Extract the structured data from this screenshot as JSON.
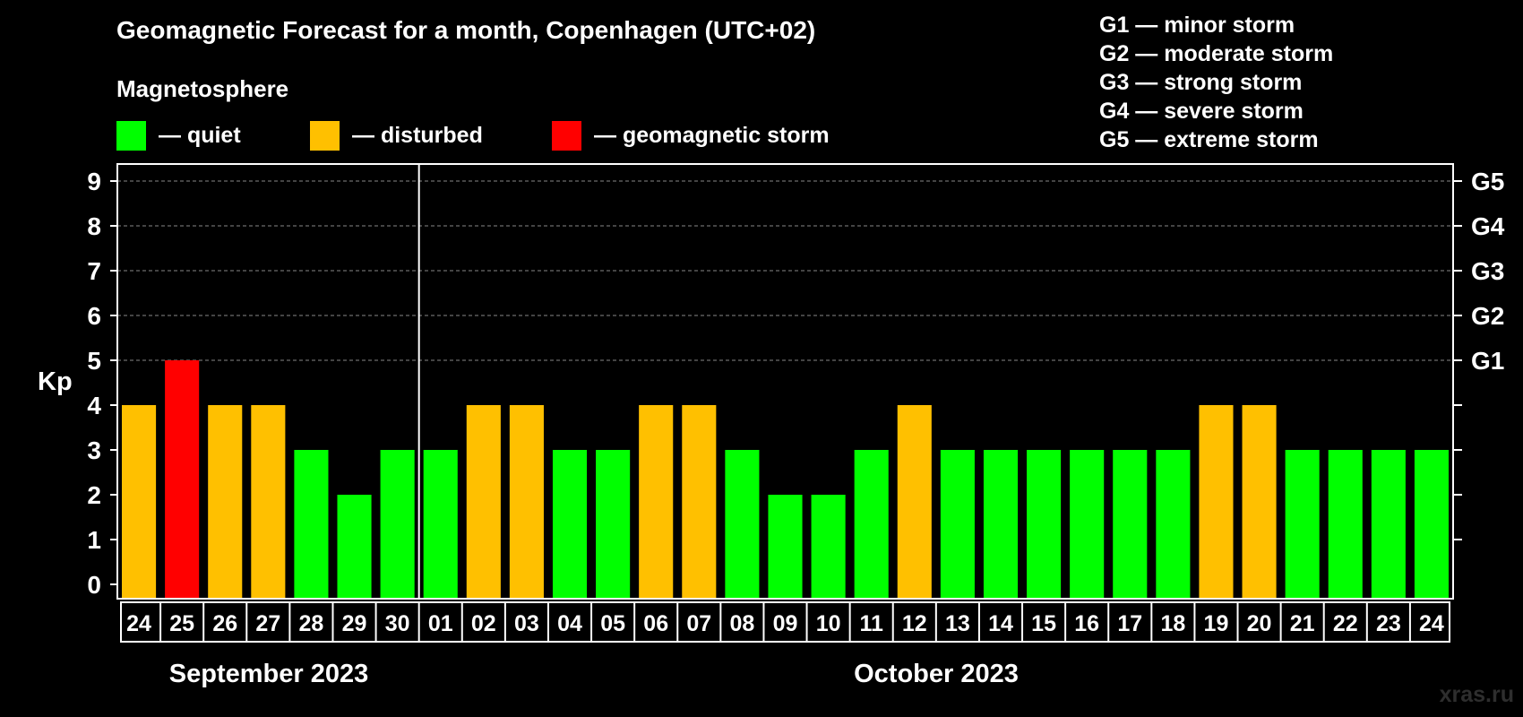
{
  "title": "Geomagnetic Forecast for a month, Copenhagen (UTC+02)",
  "section_label": "Magnetosphere",
  "legend": [
    {
      "label": "— quiet",
      "color": "#00ff00"
    },
    {
      "label": "— disturbed",
      "color": "#ffc000"
    },
    {
      "label": "— geomagnetic storm",
      "color": "#ff0000"
    }
  ],
  "storm_scale": [
    "G1 — minor storm",
    "G2 — moderate storm",
    "G3 — strong storm",
    "G4 — severe storm",
    "G5 — extreme storm"
  ],
  "months": [
    "September 2023",
    "October 2023"
  ],
  "watermark": "xras.ru",
  "chart_data": {
    "type": "bar",
    "ylabel": "Kp",
    "ylim": [
      0,
      9
    ],
    "yticks": [
      0,
      1,
      2,
      3,
      4,
      5,
      6,
      7,
      8,
      9
    ],
    "right_axis_labels": [
      {
        "value": 5,
        "label": "G1"
      },
      {
        "value": 6,
        "label": "G2"
      },
      {
        "value": 7,
        "label": "G3"
      },
      {
        "value": 8,
        "label": "G4"
      },
      {
        "value": 9,
        "label": "G5"
      }
    ],
    "categories": [
      "24",
      "25",
      "26",
      "27",
      "28",
      "29",
      "30",
      "01",
      "02",
      "03",
      "04",
      "05",
      "06",
      "07",
      "08",
      "09",
      "10",
      "11",
      "12",
      "13",
      "14",
      "15",
      "16",
      "17",
      "18",
      "19",
      "20",
      "21",
      "22",
      "23",
      "24"
    ],
    "values": [
      4,
      5,
      4,
      4,
      3,
      2,
      3,
      3,
      4,
      4,
      3,
      3,
      4,
      4,
      3,
      2,
      2,
      3,
      4,
      3,
      3,
      3,
      3,
      3,
      3,
      4,
      4,
      3,
      3,
      3,
      3
    ],
    "status": [
      "disturbed",
      "storm",
      "disturbed",
      "disturbed",
      "quiet",
      "quiet",
      "quiet",
      "quiet",
      "disturbed",
      "disturbed",
      "quiet",
      "quiet",
      "disturbed",
      "disturbed",
      "quiet",
      "quiet",
      "quiet",
      "quiet",
      "disturbed",
      "quiet",
      "quiet",
      "quiet",
      "quiet",
      "quiet",
      "quiet",
      "disturbed",
      "disturbed",
      "quiet",
      "quiet",
      "quiet",
      "quiet"
    ],
    "colors": {
      "quiet": "#00ff00",
      "disturbed": "#ffc000",
      "storm": "#ff0000"
    },
    "month_split_after_index": 6,
    "grid": true
  }
}
